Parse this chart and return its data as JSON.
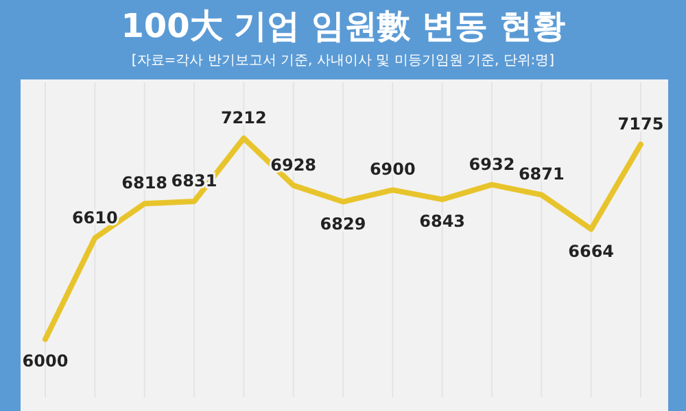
{
  "chart_data": {
    "type": "line",
    "title": "100大 기업 임원數 변동 현황",
    "subtitle": "[자료=각사 반기보고서 기준, 사내이사 및 미등기임원 기준, 단위:명]",
    "categories": [
      null,
      null,
      null,
      null,
      null,
      null,
      null,
      null,
      null,
      null,
      null,
      null,
      null
    ],
    "series": [
      {
        "color": "#e8c42c",
        "values": [
          6000,
          6610,
          6818,
          6831,
          7212,
          6928,
          6829,
          6900,
          6843,
          6932,
          6871,
          6664,
          7175
        ]
      }
    ],
    "ylim": [
      5650,
      7550
    ],
    "data_labels": true,
    "grid": "x",
    "marker": "none",
    "line_style": "solid"
  }
}
